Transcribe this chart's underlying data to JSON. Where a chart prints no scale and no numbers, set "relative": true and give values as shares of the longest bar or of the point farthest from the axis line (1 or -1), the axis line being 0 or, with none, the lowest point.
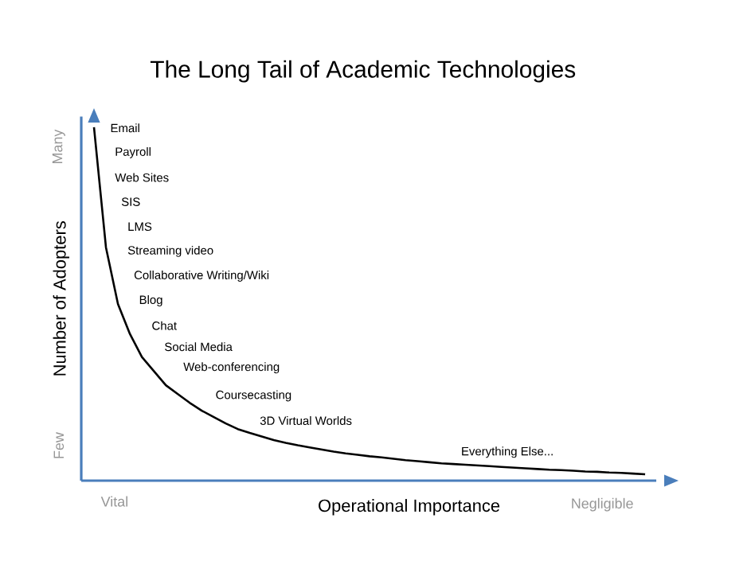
{
  "chart_data": {
    "type": "line",
    "title": "The Long Tail of Academic Technologies",
    "xlabel": "Operational Importance",
    "ylabel": "Number of Adopters",
    "relative": true,
    "categories": [
      null,
      null,
      null,
      null,
      null,
      null,
      null,
      null,
      null,
      null,
      null,
      null,
      null,
      null,
      null,
      null,
      null,
      null,
      null,
      null,
      null,
      null,
      null,
      null,
      null,
      null,
      null,
      null,
      null,
      null,
      null,
      null,
      null,
      null,
      null,
      null,
      null,
      null,
      null,
      null,
      null,
      null,
      null,
      null,
      null,
      null,
      null
    ],
    "series": [
      {
        "color": "#000000",
        "values": [
          1.0,
          0.66,
          0.5,
          0.415,
          0.35,
          0.31,
          0.27,
          0.245,
          0.22,
          0.198,
          0.18,
          0.162,
          0.146,
          0.135,
          0.125,
          0.115,
          0.107,
          0.1,
          0.094,
          0.088,
          0.082,
          0.077,
          0.073,
          0.069,
          0.066,
          0.062,
          0.058,
          0.055,
          0.052,
          0.049,
          0.047,
          0.045,
          0.043,
          0.041,
          0.039,
          0.037,
          0.035,
          0.033,
          0.031,
          0.03,
          0.028,
          0.026,
          0.025,
          0.023,
          0.022,
          0.02,
          0.018
        ]
      }
    ],
    "grid": false,
    "marker": "none",
    "line_style": "solid",
    "annotations": [
      "Email",
      "Payroll",
      "Web Sites",
      "SIS",
      "LMS",
      "Streaming video",
      "Collaborative Writing/Wiki",
      "Blog",
      "Chat",
      "Social Media",
      "Web-conferencing",
      "Coursecasting",
      "3D Virtual Worlds",
      "Everything Else...",
      "Many",
      "Few",
      "Vital",
      "Negligible"
    ]
  }
}
